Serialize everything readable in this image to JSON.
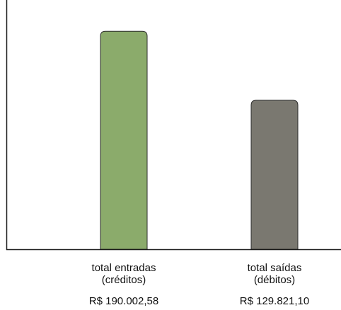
{
  "chart_data": {
    "type": "bar",
    "categories": [
      [
        "total entradas",
        "(créditos)"
      ],
      [
        "total saídas",
        "(débitos)"
      ]
    ],
    "values": [
      190002.58,
      129821.1
    ],
    "value_labels": [
      "R$ 190.002,58",
      "R$ 129.821,10"
    ],
    "colors": [
      "#8bab6b",
      "#7a7870"
    ],
    "outline_color": "#2b2b2b",
    "axis_color": "#1a1a1a",
    "ylim": [
      0,
      200000
    ],
    "title": "",
    "xlabel": "",
    "ylabel": "",
    "grid": false,
    "legend": "none"
  }
}
